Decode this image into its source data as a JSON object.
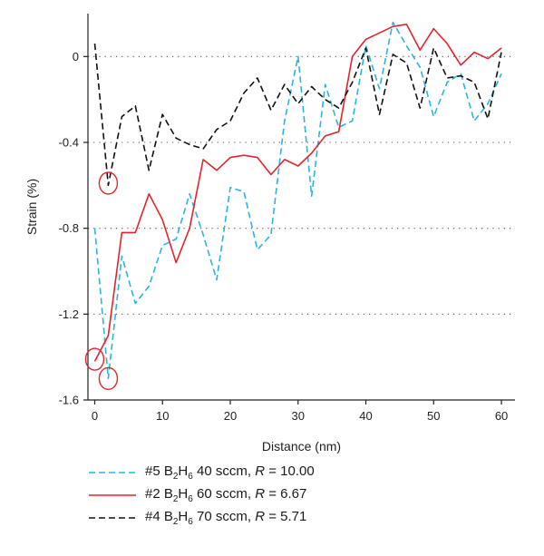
{
  "chart_data": {
    "type": "line",
    "xlabel": "Distance (nm)",
    "ylabel": "Strain (%)",
    "xlim": [
      -1,
      62
    ],
    "ylim": [
      -1.6,
      0.2
    ],
    "xticks": [
      0,
      10,
      20,
      30,
      40,
      50,
      60
    ],
    "yticks": [
      0,
      -0.4,
      -0.8,
      -1.2,
      -1.6
    ],
    "grid": "dotted horizontal",
    "legend_placement": "below",
    "series": [
      {
        "name": "#5 B2H6 40 sccm, R = 10.00",
        "legend": {
          "id": "#5 B",
          "sub1": "2",
          "mid": "H",
          "sub2": "6",
          "flow": " 40 sccm, ",
          "r_label": "R",
          "r_value": " = 10.00"
        },
        "color": "#29b5e0",
        "dash": "dashed",
        "x": [
          0,
          2,
          4,
          6,
          8,
          10,
          12,
          14,
          16,
          18,
          20,
          22,
          24,
          26,
          28,
          30,
          32,
          34,
          36,
          38,
          40,
          42,
          44,
          46,
          48,
          50,
          52,
          54,
          56,
          58,
          60
        ],
        "y": [
          -0.8,
          -1.5,
          -0.93,
          -1.15,
          -1.07,
          -0.88,
          -0.85,
          -0.64,
          -0.83,
          -1.04,
          -0.61,
          -0.63,
          -0.9,
          -0.83,
          -0.3,
          0.0,
          -0.65,
          -0.13,
          -0.33,
          -0.3,
          0.05,
          -0.15,
          0.16,
          0.05,
          -0.05,
          -0.28,
          -0.12,
          -0.08,
          -0.3,
          -0.22,
          -0.08
        ]
      },
      {
        "name": "#2 B2H6 60 sccm, R = 6.67",
        "legend": {
          "id": "#2 B",
          "sub1": "2",
          "mid": "H",
          "sub2": "6",
          "flow": " 60 sccm, ",
          "r_label": "R",
          "r_value": " = 6.67"
        },
        "color": "#e3242b",
        "dash": "solid",
        "x": [
          0,
          2,
          4,
          6,
          8,
          10,
          12,
          14,
          16,
          18,
          20,
          22,
          24,
          26,
          28,
          30,
          32,
          34,
          36,
          38,
          40,
          42,
          44,
          46,
          48,
          50,
          52,
          54,
          56,
          58,
          60
        ],
        "y": [
          -1.42,
          -1.3,
          -0.82,
          -0.82,
          -0.64,
          -0.76,
          -0.96,
          -0.8,
          -0.48,
          -0.53,
          -0.47,
          -0.46,
          -0.47,
          -0.55,
          -0.48,
          -0.51,
          -0.45,
          -0.37,
          -0.35,
          0.0,
          0.08,
          0.11,
          0.14,
          0.15,
          0.03,
          0.13,
          0.06,
          -0.04,
          0.02,
          -0.01,
          0.04
        ]
      },
      {
        "name": "#4 B2H6 70 sccm, R = 5.71",
        "legend": {
          "id": "#4 B",
          "sub1": "2",
          "mid": "H",
          "sub2": "6",
          "flow": " 70 sccm, ",
          "r_label": "R",
          "r_value": " = 5.71"
        },
        "color": "#111111",
        "dash": "dashed",
        "x": [
          0,
          2,
          4,
          6,
          8,
          10,
          12,
          14,
          16,
          18,
          20,
          22,
          24,
          26,
          28,
          30,
          32,
          34,
          36,
          38,
          40,
          42,
          44,
          46,
          48,
          50,
          52,
          54,
          56,
          58,
          60
        ],
        "y": [
          0.06,
          -0.6,
          -0.28,
          -0.23,
          -0.53,
          -0.27,
          -0.38,
          -0.41,
          -0.43,
          -0.34,
          -0.3,
          -0.17,
          -0.1,
          -0.25,
          -0.13,
          -0.22,
          -0.14,
          -0.2,
          -0.24,
          -0.12,
          0.04,
          -0.27,
          0.01,
          -0.03,
          -0.24,
          0.04,
          -0.1,
          -0.09,
          -0.12,
          -0.29,
          0.02
        ]
      }
    ],
    "annotations": [
      {
        "type": "circle",
        "x": 2,
        "y": -0.59,
        "color": "#e3242b"
      },
      {
        "type": "circle",
        "x": 0,
        "y": -1.41,
        "color": "#e3242b"
      },
      {
        "type": "circle",
        "x": 2,
        "y": -1.5,
        "color": "#e3242b"
      }
    ]
  }
}
